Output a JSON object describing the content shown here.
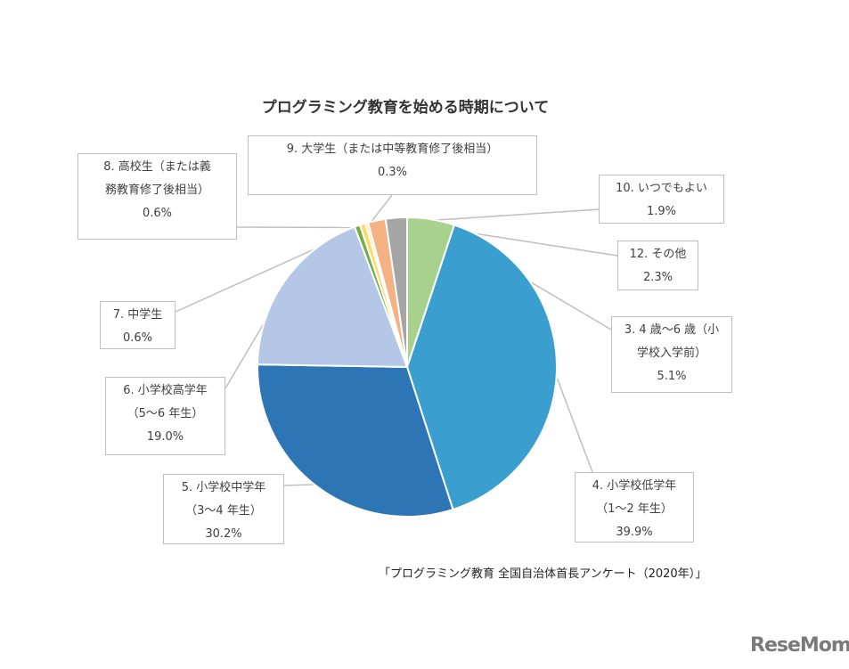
{
  "chart_data": {
    "type": "pie",
    "title": "プログラミング教育を始める時期について",
    "source": "「プログラミング教育 全国自治体首長アンケート（2020年）」",
    "start": "12 o'clock, clockwise",
    "slices": [
      {
        "label_lines": [
          "3. 4 歳～6 歳（小",
          "学校入学前）"
        ],
        "value": 5.1,
        "value_label": "5.1%",
        "color": "#a9d18e"
      },
      {
        "label_lines": [
          "4. 小学校低学年",
          "（1～2 年生）"
        ],
        "value": 39.9,
        "value_label": "39.9%",
        "color": "#3a9fcf"
      },
      {
        "label_lines": [
          "5. 小学校中学年",
          "（3～4 年生）"
        ],
        "value": 30.2,
        "value_label": "30.2%",
        "color": "#2e75b6"
      },
      {
        "label_lines": [
          "6. 小学校高学年",
          "（5～6 年生）"
        ],
        "value": 19.0,
        "value_label": "19.0%",
        "color": "#b4c7e7"
      },
      {
        "label_lines": [
          "7. 中学生"
        ],
        "value": 0.6,
        "value_label": "0.6%",
        "color": "#70ad47"
      },
      {
        "label_lines": [
          "8. 高校生（または義",
          "務教育修了後相当）"
        ],
        "value": 0.6,
        "value_label": "0.6%",
        "color": "#ffd966"
      },
      {
        "label_lines": [
          "9. 大学生（または中等教育修了後相当）"
        ],
        "value": 0.3,
        "value_label": "0.3%",
        "color": "#fbe5a6"
      },
      {
        "label_lines": [
          "10. いつでもよい"
        ],
        "value": 1.9,
        "value_label": "1.9%",
        "color": "#f4b183"
      },
      {
        "label_lines": [
          "12. その他"
        ],
        "value": 2.3,
        "value_label": "2.3%",
        "color": "#a5a5a5"
      }
    ]
  },
  "logo": "ReseMom"
}
